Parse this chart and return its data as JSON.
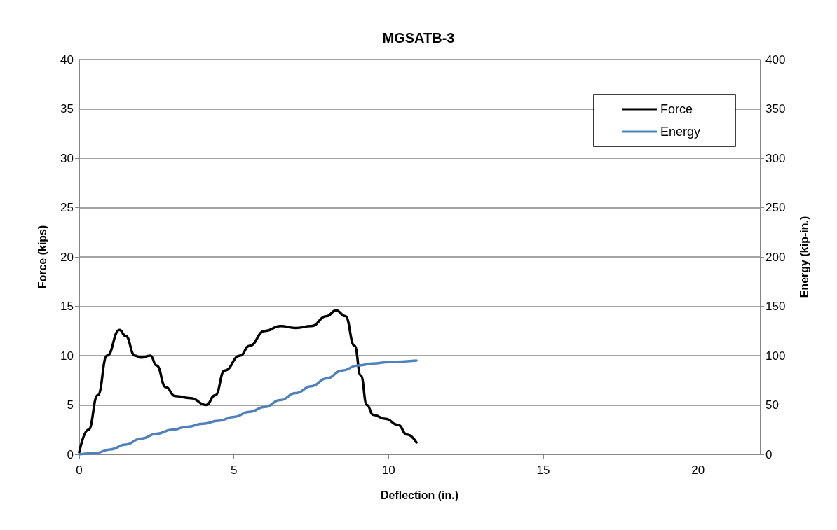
{
  "chart_data": {
    "type": "line",
    "title": "MGSATB-3",
    "xlabel": "Deflection (in.)",
    "ylabel": "Force (kips)",
    "y2label": "Energy (kip-in.)",
    "xlim": [
      0,
      22
    ],
    "xticks": [
      0,
      5,
      10,
      15,
      20
    ],
    "ylim": [
      0,
      40
    ],
    "yticks": [
      0,
      5,
      10,
      15,
      20,
      25,
      30,
      35,
      40
    ],
    "y2lim": [
      0,
      400
    ],
    "y2ticks": [
      0,
      50,
      100,
      150,
      200,
      250,
      300,
      350,
      400
    ],
    "grid": "y",
    "legend": "top right",
    "marker": "none",
    "line_style": "solid",
    "series": [
      {
        "name": "Force",
        "color": "#000000",
        "x": [
          0,
          0.3,
          0.6,
          0.9,
          1.3,
          1.5,
          1.8,
          2.0,
          2.3,
          2.5,
          2.8,
          3.1,
          3.6,
          4.1,
          4.4,
          4.7,
          5.2,
          5.5,
          6,
          6.5,
          7,
          7.5,
          8,
          8.3,
          8.6,
          8.9,
          9.1,
          9.3,
          9.5,
          9.9,
          10.3,
          10.6,
          10.9
        ],
        "values": [
          0.2,
          2.5,
          6,
          10,
          12.6,
          12,
          10,
          9.8,
          10,
          9,
          6.8,
          5.9,
          5.7,
          5.0,
          6,
          8.5,
          10,
          11,
          12.5,
          13,
          12.8,
          13,
          14,
          14.6,
          14,
          11,
          8,
          5,
          4,
          3.6,
          3,
          2,
          1.2
        ]
      },
      {
        "name": "Energy",
        "color": "#4f81bd",
        "axis": "y2",
        "x": [
          0,
          0.5,
          1,
          1.5,
          2,
          2.5,
          3,
          3.5,
          4,
          4.5,
          5,
          5.5,
          6,
          6.5,
          7,
          7.5,
          8,
          8.5,
          9,
          9.5,
          10,
          10.9
        ],
        "values": [
          0,
          1,
          5,
          10,
          16,
          21,
          25,
          28,
          31,
          34,
          38,
          43,
          48,
          55,
          62,
          69,
          77,
          85,
          90,
          92,
          93.5,
          95
        ]
      }
    ]
  }
}
